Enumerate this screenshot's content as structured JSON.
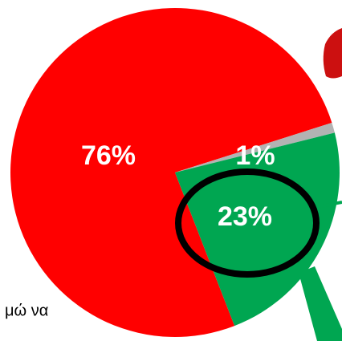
{
  "chart_data": {
    "type": "pie",
    "values": [
      76,
      1,
      23
    ],
    "value_labels": [
      "76%",
      "1%",
      "23%"
    ],
    "colors": [
      "#ff0000",
      "#b3b3b3",
      "#00a651"
    ],
    "annotations": [
      "μώ να"
    ]
  }
}
